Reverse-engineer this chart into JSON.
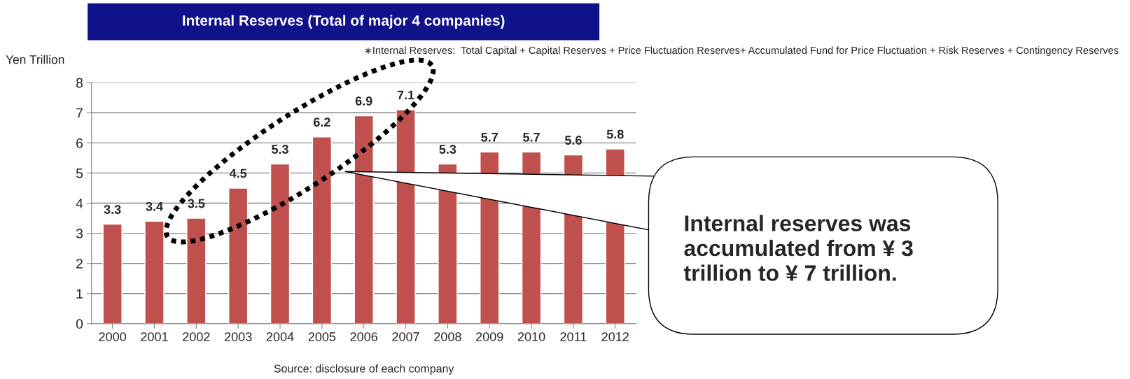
{
  "chart_data": {
    "type": "bar",
    "title": "Internal Reserves (Total of major 4 companies)",
    "subtitle": "∗Internal Reserves:  Total Capital + Capital Reserves + Price Fluctuation Reserves+ Accumulated Fund for Price Fluctuation + Risk Reserves + Contingency Reserves",
    "ylabel": "Yen Trillion",
    "categories": [
      "2000",
      "2001",
      "2002",
      "2003",
      "2004",
      "2005",
      "2006",
      "2007",
      "2008",
      "2009",
      "2010",
      "2011",
      "2012"
    ],
    "values": [
      3.3,
      3.4,
      3.5,
      4.5,
      5.3,
      6.2,
      6.9,
      7.1,
      5.3,
      5.7,
      5.7,
      5.6,
      5.8
    ],
    "color": "#c0504d",
    "ylim": [
      0,
      8
    ],
    "yticks": [
      0,
      1,
      2,
      3,
      4,
      5,
      6,
      7,
      8
    ],
    "grid": "y",
    "data_labels": true,
    "legend": false,
    "annotations": [
      "Source: disclosure of each company",
      "Internal reserves was accumulated from ¥ 3 trillion to ¥ 7 trillion."
    ]
  }
}
